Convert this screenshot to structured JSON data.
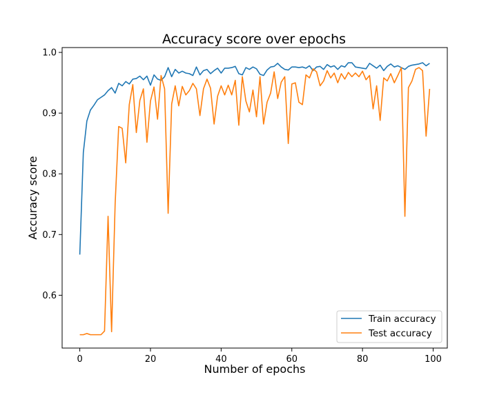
{
  "chart_data": {
    "type": "line",
    "title": "Accuracy score over epochs",
    "xlabel": "Number of epochs",
    "ylabel": "Accuracy score",
    "xlim": [
      -5,
      104
    ],
    "ylim": [
      0.513,
      1.008
    ],
    "x_ticks": [
      0,
      20,
      40,
      60,
      80,
      100
    ],
    "y_ticks": [
      0.6,
      0.7,
      0.8,
      0.9,
      1.0
    ],
    "x_tick_labels": [
      "0",
      "20",
      "40",
      "60",
      "80",
      "100"
    ],
    "y_tick_labels": [
      "0.6",
      "0.7",
      "0.8",
      "0.9",
      "1.0"
    ],
    "grid": false,
    "legend_position": "lower-right",
    "x": [
      0,
      1,
      2,
      3,
      4,
      5,
      6,
      7,
      8,
      9,
      10,
      11,
      12,
      13,
      14,
      15,
      16,
      17,
      18,
      19,
      20,
      21,
      22,
      23,
      24,
      25,
      26,
      27,
      28,
      29,
      30,
      31,
      32,
      33,
      34,
      35,
      36,
      37,
      38,
      39,
      40,
      41,
      42,
      43,
      44,
      45,
      46,
      47,
      48,
      49,
      50,
      51,
      52,
      53,
      54,
      55,
      56,
      57,
      58,
      59,
      60,
      61,
      62,
      63,
      64,
      65,
      66,
      67,
      68,
      69,
      70,
      71,
      72,
      73,
      74,
      75,
      76,
      77,
      78,
      79,
      80,
      81,
      82,
      83,
      84,
      85,
      86,
      87,
      88,
      89,
      90,
      91,
      92,
      93,
      94,
      95,
      96,
      97,
      98,
      99
    ],
    "series": [
      {
        "name": "Train accuracy",
        "color": "#1f77b4",
        "values": [
          0.667,
          0.835,
          0.887,
          0.905,
          0.913,
          0.922,
          0.926,
          0.93,
          0.937,
          0.942,
          0.933,
          0.949,
          0.945,
          0.952,
          0.948,
          0.956,
          0.957,
          0.961,
          0.955,
          0.961,
          0.946,
          0.963,
          0.956,
          0.954,
          0.96,
          0.975,
          0.96,
          0.972,
          0.966,
          0.969,
          0.966,
          0.965,
          0.962,
          0.976,
          0.963,
          0.97,
          0.972,
          0.965,
          0.97,
          0.974,
          0.966,
          0.974,
          0.974,
          0.975,
          0.977,
          0.965,
          0.963,
          0.975,
          0.972,
          0.976,
          0.973,
          0.964,
          0.962,
          0.971,
          0.976,
          0.977,
          0.982,
          0.976,
          0.972,
          0.971,
          0.976,
          0.976,
          0.975,
          0.976,
          0.974,
          0.978,
          0.97,
          0.976,
          0.977,
          0.972,
          0.98,
          0.976,
          0.978,
          0.972,
          0.978,
          0.976,
          0.983,
          0.983,
          0.976,
          0.975,
          0.974,
          0.973,
          0.982,
          0.978,
          0.974,
          0.979,
          0.97,
          0.977,
          0.981,
          0.976,
          0.978,
          0.975,
          0.972,
          0.977,
          0.979,
          0.98,
          0.981,
          0.983,
          0.978,
          0.982
        ]
      },
      {
        "name": "Test accuracy",
        "color": "#ff7f0e",
        "values": [
          0.535,
          0.535,
          0.537,
          0.535,
          0.535,
          0.535,
          0.535,
          0.541,
          0.73,
          0.54,
          0.75,
          0.878,
          0.875,
          0.818,
          0.914,
          0.947,
          0.868,
          0.921,
          0.94,
          0.852,
          0.92,
          0.943,
          0.89,
          0.962,
          0.94,
          0.735,
          0.915,
          0.945,
          0.912,
          0.944,
          0.93,
          0.937,
          0.949,
          0.94,
          0.896,
          0.94,
          0.956,
          0.941,
          0.882,
          0.928,
          0.945,
          0.93,
          0.946,
          0.93,
          0.954,
          0.88,
          0.96,
          0.92,
          0.902,
          0.938,
          0.894,
          0.96,
          0.882,
          0.918,
          0.933,
          0.968,
          0.924,
          0.951,
          0.96,
          0.85,
          0.948,
          0.95,
          0.918,
          0.914,
          0.963,
          0.958,
          0.973,
          0.968,
          0.945,
          0.953,
          0.97,
          0.958,
          0.966,
          0.95,
          0.965,
          0.956,
          0.967,
          0.96,
          0.966,
          0.96,
          0.969,
          0.955,
          0.962,
          0.907,
          0.945,
          0.888,
          0.958,
          0.953,
          0.965,
          0.95,
          0.962,
          0.975,
          0.73,
          0.942,
          0.953,
          0.972,
          0.975,
          0.97,
          0.862,
          0.94
        ]
      }
    ]
  }
}
